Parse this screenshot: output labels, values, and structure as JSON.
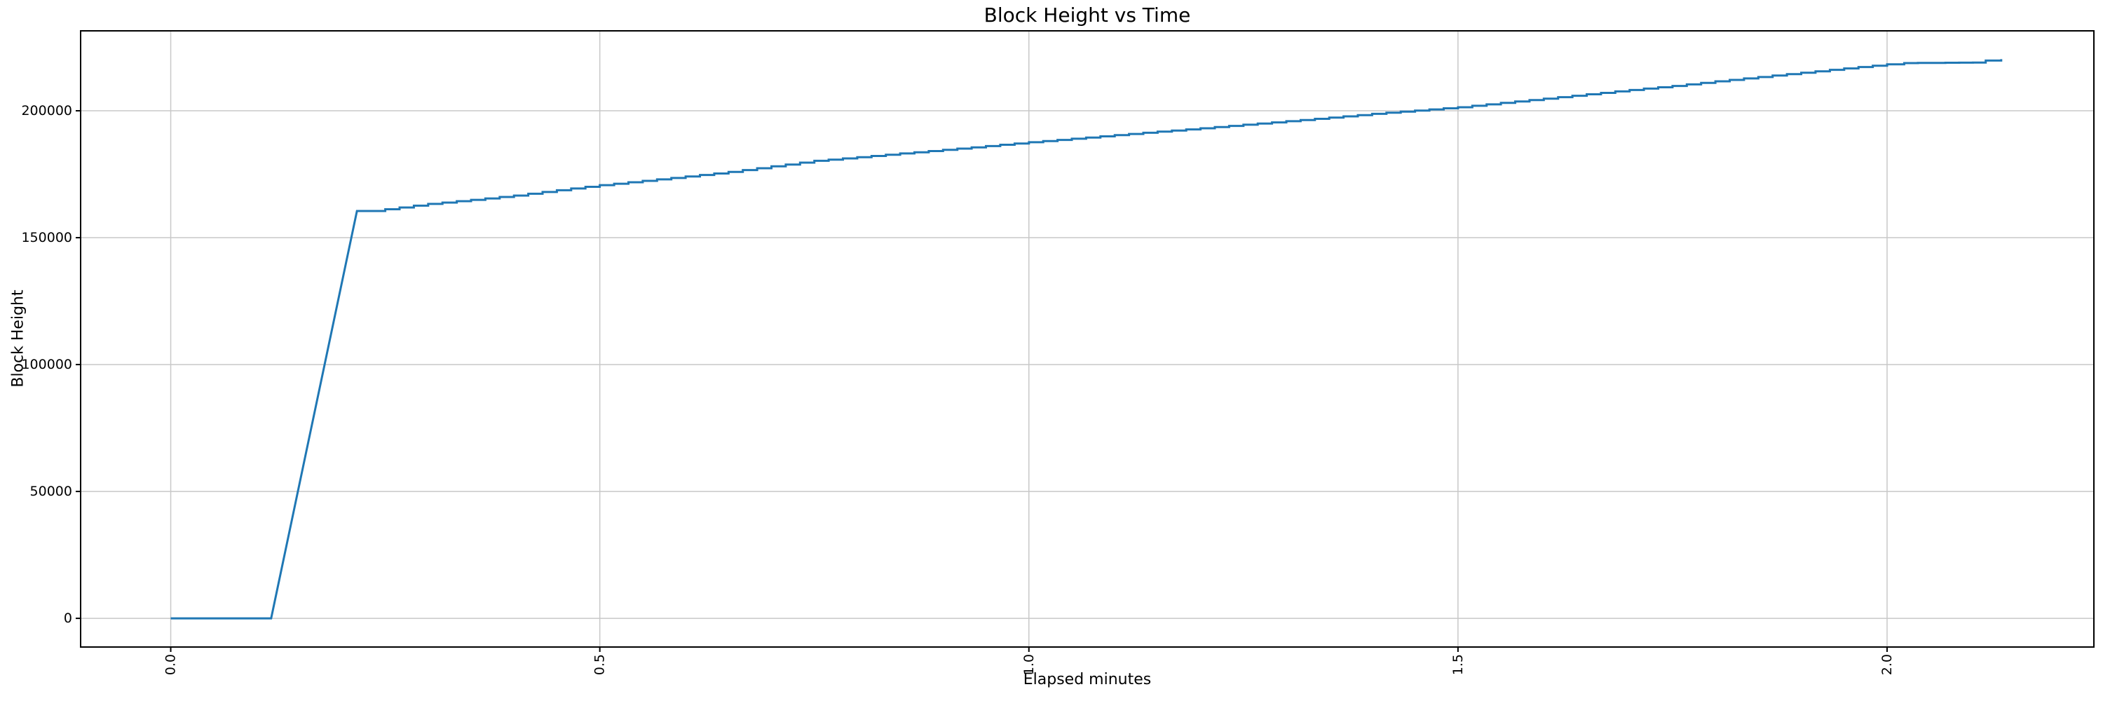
{
  "chart_data": {
    "type": "line",
    "title": "Block Height vs Time",
    "xlabel": "Elapsed minutes",
    "ylabel": "Block Height",
    "legend": false,
    "grid": true,
    "xlim": [
      -0.105,
      2.241
    ],
    "ylim": [
      -11300,
      231500
    ],
    "x_ticks": {
      "values": [
        0.0,
        0.5,
        1.0,
        1.5,
        2.0
      ],
      "labels": [
        "0.0",
        "0.5",
        "1.0",
        "1.5",
        "2.0"
      ],
      "rotation_deg": 90
    },
    "y_ticks": {
      "values": [
        0,
        50000,
        100000,
        150000,
        200000
      ],
      "labels": [
        "0",
        "50000",
        "100000",
        "150000",
        "200000"
      ]
    },
    "colors": {
      "line": "#1f77b4",
      "grid": "#c8c8c8",
      "spine": "#000000",
      "background": "#ffffff"
    },
    "series": [
      {
        "name": "block-height",
        "style": "staircase",
        "points": [
          [
            0.0,
            0
          ],
          [
            0.117,
            0
          ],
          [
            0.217,
            160500
          ],
          [
            0.232,
            160500
          ],
          [
            0.25,
            161200
          ],
          [
            0.3,
            163300
          ],
          [
            0.35,
            164900
          ],
          [
            0.4,
            166600
          ],
          [
            0.45,
            168700
          ],
          [
            0.5,
            170700
          ],
          [
            0.55,
            172400
          ],
          [
            0.6,
            174100
          ],
          [
            0.65,
            175900
          ],
          [
            0.7,
            178100
          ],
          [
            0.75,
            180300
          ],
          [
            0.8,
            181700
          ],
          [
            0.85,
            183200
          ],
          [
            0.9,
            184600
          ],
          [
            0.95,
            186100
          ],
          [
            1.0,
            187600
          ],
          [
            1.05,
            189000
          ],
          [
            1.1,
            190400
          ],
          [
            1.15,
            191800
          ],
          [
            1.2,
            193100
          ],
          [
            1.25,
            194500
          ],
          [
            1.3,
            195900
          ],
          [
            1.35,
            197300
          ],
          [
            1.4,
            198800
          ],
          [
            1.45,
            200100
          ],
          [
            1.5,
            201400
          ],
          [
            1.55,
            203100
          ],
          [
            1.6,
            204800
          ],
          [
            1.65,
            206500
          ],
          [
            1.7,
            208200
          ],
          [
            1.75,
            209800
          ],
          [
            1.8,
            211600
          ],
          [
            1.85,
            213300
          ],
          [
            1.9,
            215000
          ],
          [
            1.95,
            216700
          ],
          [
            2.0,
            218300
          ],
          [
            2.02,
            218800
          ],
          [
            2.1,
            219000
          ],
          [
            2.115,
            219800
          ],
          [
            2.133,
            220350
          ]
        ]
      }
    ]
  }
}
